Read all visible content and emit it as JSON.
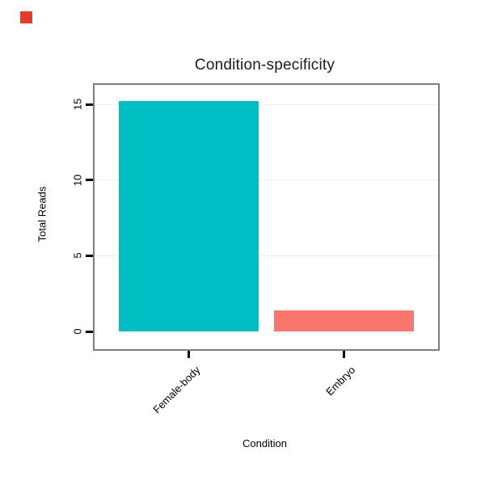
{
  "page": {
    "background": "#ffffff"
  },
  "corner_marker": {
    "color": "#e8392e"
  },
  "chart_data": {
    "type": "bar",
    "title": "Condition-specificity",
    "xlabel": "Condition",
    "ylabel": "Total Reads",
    "categories": [
      "Female-body",
      "Embryo"
    ],
    "values": [
      15.2,
      1.4
    ],
    "colors": [
      "#00BFC4",
      "#F8766D"
    ],
    "yticks": [
      0,
      5,
      10,
      15
    ],
    "ylim": [
      0,
      16.3
    ],
    "grid": "major-horizontal-light",
    "legend": "none",
    "panel_border_color": "#7d7d7d"
  }
}
